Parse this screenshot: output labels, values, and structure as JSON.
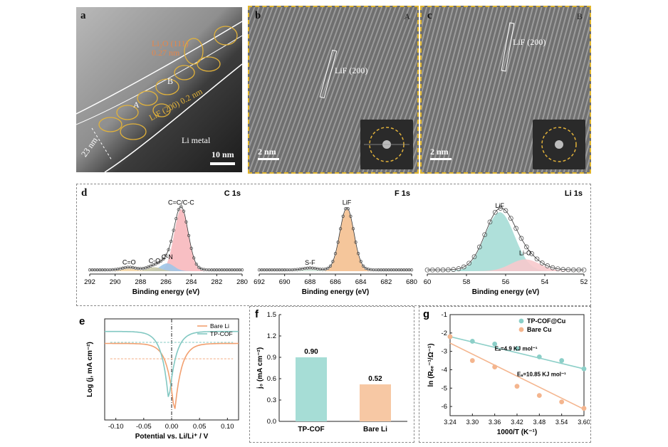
{
  "panels": {
    "a": {
      "label": "a",
      "annotations": {
        "li2o": "Li₂O (111)",
        "li2o_d": "0.27 nm",
        "lif": "LiF (200) 0.2 nm",
        "region_a": "A",
        "region_b": "B",
        "metal": "Li metal",
        "thickness": "23 nm",
        "scale": "10 nm"
      }
    },
    "b": {
      "label": "b",
      "corner": "A",
      "lattice": "LiF (200)",
      "scale": "2 nm"
    },
    "c": {
      "label": "c",
      "corner": "B",
      "lattice": "LiF (200)",
      "scale": "2 nm"
    },
    "d": {
      "label": "d"
    }
  },
  "chart_data": [
    {
      "panel": "d",
      "type": "line",
      "title": "C 1s",
      "xlabel": "Binding energy (eV)",
      "xlim": [
        292,
        280
      ],
      "x_ticks": [
        "292",
        "290",
        "288",
        "286",
        "284",
        "282",
        "280"
      ],
      "peaks": [
        {
          "name": "C=C/C-C",
          "center": 284.8,
          "height": 0.95,
          "color": "#f7b8bd"
        },
        {
          "name": "C-N",
          "center": 285.9,
          "height": 0.12,
          "color": "#9ec5e8"
        },
        {
          "name": "C-O",
          "center": 286.9,
          "height": 0.06,
          "color": "#c9c9a8"
        },
        {
          "name": "C=O",
          "center": 288.9,
          "height": 0.04,
          "color": "#f4d6a6"
        }
      ]
    },
    {
      "panel": "d",
      "type": "line",
      "title": "F 1s",
      "xlabel": "Binding energy (eV)",
      "xlim": [
        692,
        680
      ],
      "x_ticks": [
        "692",
        "690",
        "688",
        "686",
        "684",
        "682",
        "680"
      ],
      "peaks": [
        {
          "name": "LiF",
          "center": 685.1,
          "height": 0.95,
          "color": "#f4c090"
        },
        {
          "name": "S-F",
          "center": 688.0,
          "height": 0.03,
          "color": "#cfe3d6"
        }
      ]
    },
    {
      "panel": "d",
      "type": "scatter",
      "title": "Li 1s",
      "xlabel": "Binding energy (eV)",
      "xlim": [
        60,
        52
      ],
      "x_ticks": [
        "60",
        "58",
        "56",
        "54",
        "52"
      ],
      "peaks": [
        {
          "name": "LiF",
          "center": 56.3,
          "height": 0.9,
          "color": "#a6ddd6"
        },
        {
          "name": "Li-O",
          "center": 55.0,
          "height": 0.18,
          "color": "#f7c9cc"
        }
      ]
    },
    {
      "panel": "e",
      "label": "e",
      "type": "line",
      "xlabel": "Potential vs. Li/Li⁺ / V",
      "ylabel": "Log (j, mA cm⁻²)",
      "xlim": [
        -0.12,
        0.12
      ],
      "ylim": [
        -1.4,
        0.45
      ],
      "x_ticks": [
        "-0.10",
        "-0.05",
        "0.00",
        "0.05",
        "0.10"
      ],
      "series": [
        {
          "name": "Bare Li",
          "color": "#f2a070",
          "e0": 0.005,
          "j0": -0.28,
          "plateau": 0.0
        },
        {
          "name": "TP-COF",
          "color": "#82c8c2",
          "e0": -0.005,
          "j0": 0.02,
          "plateau": 0.22
        }
      ]
    },
    {
      "panel": "f",
      "label": "f",
      "type": "bar",
      "categories": [
        "TP-COF",
        "Bare Li"
      ],
      "values": [
        0.9,
        0.52
      ],
      "value_labels": [
        "0.90",
        "0.52"
      ],
      "colors": [
        "#a6ddd6",
        "#f7c8a4"
      ],
      "ylabel": "j₀ (mA cm⁻²)",
      "ylim": [
        0,
        1.5
      ],
      "y_ticks": [
        "0.0",
        "0.3",
        "0.6",
        "0.9",
        "1.2",
        "1.5"
      ]
    },
    {
      "panel": "g",
      "label": "g",
      "type": "scatter",
      "xlabel": "1000/T (K⁻¹)",
      "ylabel": "ln (Rₑₑ⁻¹/Ω⁻¹)",
      "xlim": [
        3.24,
        3.6
      ],
      "ylim": [
        -6.5,
        -1
      ],
      "x_ticks": [
        "3.24",
        "3.30",
        "3.36",
        "3.42",
        "3.48",
        "3.54",
        "3.60"
      ],
      "y_ticks": [
        "-1",
        "-2",
        "-3",
        "-4",
        "-5",
        "-6"
      ],
      "series": [
        {
          "name": "TP-COF@Cu",
          "color": "#8ccfc8",
          "x": [
            3.24,
            3.3,
            3.36,
            3.42,
            3.48,
            3.54,
            3.6
          ],
          "y": [
            -2.2,
            -2.45,
            -2.6,
            -2.85,
            -3.3,
            -3.5,
            -3.95
          ],
          "fit": [
            -2.2,
            -3.95
          ],
          "annotation": "Eₐ=4.9 KJ mol⁻¹"
        },
        {
          "name": "Bare Cu",
          "color": "#f4b58e",
          "x": [
            3.24,
            3.3,
            3.36,
            3.42,
            3.48,
            3.54,
            3.6
          ],
          "y": [
            -2.2,
            -3.5,
            -3.85,
            -4.9,
            -5.4,
            -5.75,
            -6.1
          ],
          "fit": [
            -2.55,
            -6.15
          ],
          "annotation": "Eₐ=10.85 KJ mol⁻¹"
        }
      ]
    }
  ]
}
